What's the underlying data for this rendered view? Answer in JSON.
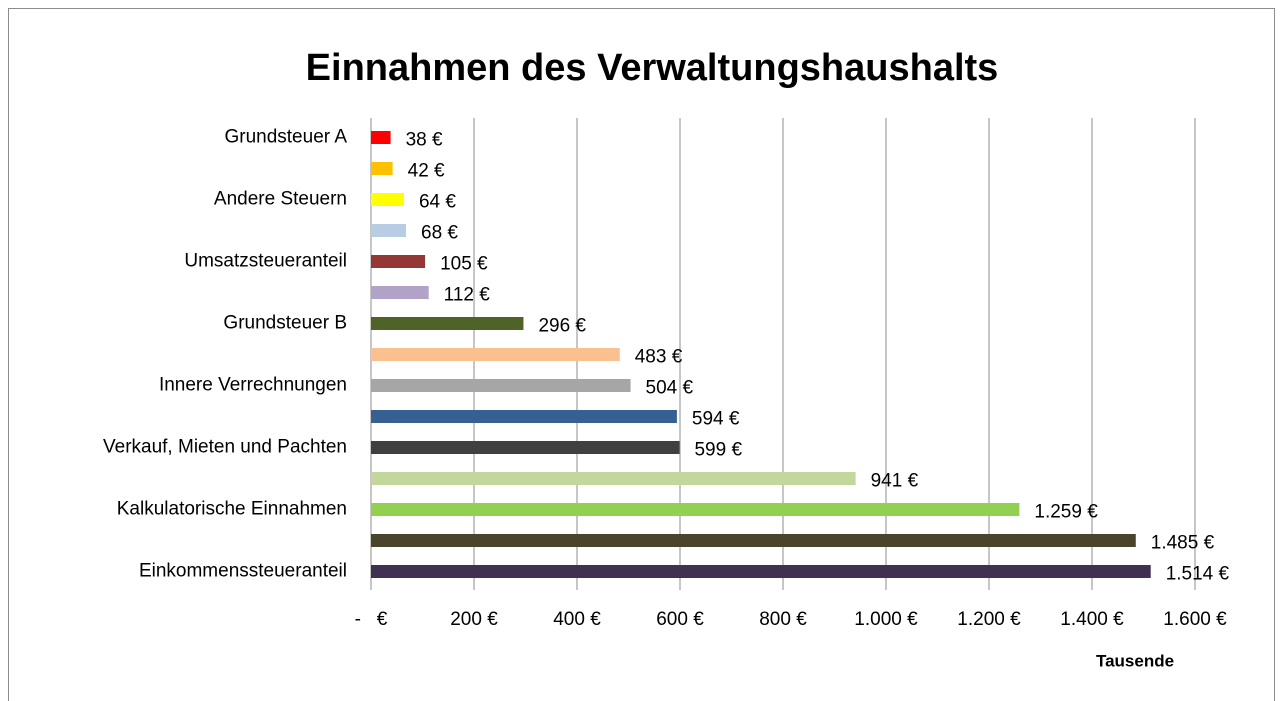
{
  "chart_data": {
    "type": "barh",
    "title": "Einnahmen des Verwaltungshaushalts",
    "categories": [
      "Grundsteuer A",
      null,
      "Andere Steuern",
      null,
      "Umsatzsteueranteil",
      null,
      "Grundsteuer B",
      null,
      "Innere Verrechnungen",
      null,
      "Verkauf, Mieten und Pachten",
      null,
      "Kalkulatorische Einnahmen",
      null,
      "Einkommenssteueranteil"
    ],
    "values": [
      38,
      42,
      64,
      68,
      105,
      112,
      296,
      483,
      504,
      594,
      599,
      941,
      1259,
      1485,
      1514
    ],
    "value_labels": [
      "38 €",
      "42 €",
      "64 €",
      "68 €",
      "105 €",
      "112 €",
      "296 €",
      "483 €",
      "504 €",
      "594 €",
      "599 €",
      "941 €",
      "1.259 €",
      "1.485 €",
      "1.514 €"
    ],
    "colors": [
      "#ff0000",
      "#ffc000",
      "#ffff00",
      "#b8cce4",
      "#953735",
      "#b3a2c7",
      "#4f6228",
      "#fac090",
      "#a6a6a6",
      "#376092",
      "#404040",
      "#c3d69b",
      "#92d050",
      "#4a452a",
      "#403152"
    ],
    "xlim": [
      0,
      1600
    ],
    "xticks": [
      {
        "value": 0,
        "label": "-   €"
      },
      {
        "value": 200,
        "label": "200 €"
      },
      {
        "value": 400,
        "label": "400 €"
      },
      {
        "value": 600,
        "label": "600 €"
      },
      {
        "value": 800,
        "label": "800 €"
      },
      {
        "value": 1000,
        "label": "1.000 €"
      },
      {
        "value": 1200,
        "label": "1.200 €"
      },
      {
        "value": 1400,
        "label": "1.400 €"
      },
      {
        "value": 1600,
        "label": "1.600 €"
      }
    ],
    "xlabel": "Tausende",
    "grid": true
  }
}
